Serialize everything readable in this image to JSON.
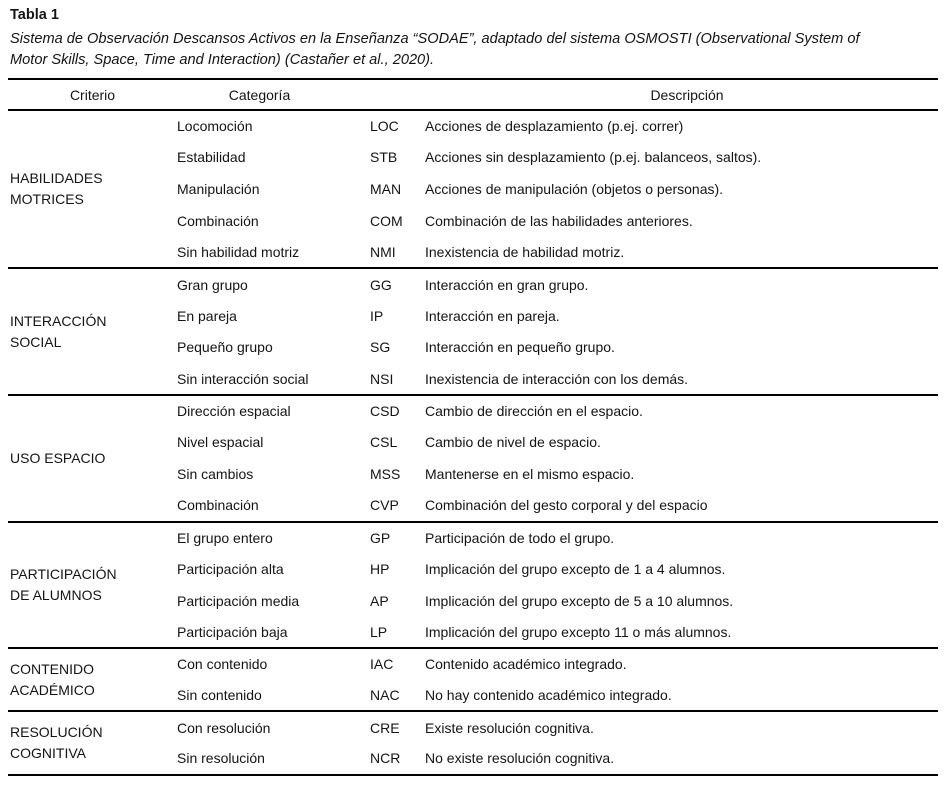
{
  "table": {
    "label": "Tabla 1",
    "caption_lines": [
      "Sistema de Observación Descansos Activos en la Enseñanza “SODAE”, adaptado del sistema OSMOSTI (Observational System of",
      "Motor Skills, Space, Time and Interaction) (Castañer et al., 2020)."
    ],
    "headers": {
      "criterio": "Criterio",
      "categoria": "Categoría",
      "descripcion": "Descripción"
    },
    "groups": [
      {
        "criterio": "HABILIDADES MOTRICES",
        "criterio_lines": [
          "HABILIDADES",
          "MOTRICES"
        ],
        "rows": [
          {
            "categoria": "Locomoción",
            "codigo": "LOC",
            "descripcion": "Acciones de desplazamiento (p.ej. correr)"
          },
          {
            "categoria": "Estabilidad",
            "codigo": "STB",
            "descripcion": "Acciones sin desplazamiento (p.ej. balanceos, saltos)."
          },
          {
            "categoria": "Manipulación",
            "codigo": "MAN",
            "descripcion": "Acciones de manipulación (objetos o personas)."
          },
          {
            "categoria": "Combinación",
            "codigo": "COM",
            "descripcion": "Combinación de las habilidades anteriores."
          },
          {
            "categoria": "Sin habilidad motriz",
            "codigo": "NMI",
            "descripcion": "Inexistencia de habilidad motriz."
          }
        ]
      },
      {
        "criterio": "INTERACCIÓN SOCIAL",
        "criterio_lines": [
          "INTERACCIÓN",
          "SOCIAL"
        ],
        "rows": [
          {
            "categoria": "Gran grupo",
            "codigo": "GG",
            "descripcion": "Interacción en gran grupo."
          },
          {
            "categoria": "En pareja",
            "codigo": "IP",
            "descripcion": "Interacción en pareja."
          },
          {
            "categoria": "Pequeño grupo",
            "codigo": "SG",
            "descripcion": "Interacción en pequeño grupo."
          },
          {
            "categoria": "Sin interacción social",
            "codigo": "NSI",
            "descripcion": "Inexistencia de interacción con los demás."
          }
        ]
      },
      {
        "criterio": "USO ESPACIO",
        "criterio_lines": [
          "USO ESPACIO"
        ],
        "rows": [
          {
            "categoria": "Dirección espacial",
            "codigo": "CSD",
            "descripcion": "Cambio de dirección en el espacio."
          },
          {
            "categoria": "Nivel espacial",
            "codigo": "CSL",
            "descripcion": "Cambio de nivel de espacio."
          },
          {
            "categoria": "Sin cambios",
            "codigo": "MSS",
            "descripcion": "Mantenerse en el mismo espacio."
          },
          {
            "categoria": "Combinación",
            "codigo": "CVP",
            "descripcion": "Combinación del gesto corporal y del espacio"
          }
        ]
      },
      {
        "criterio": "PARTICIPACIÓN DE ALUMNOS",
        "criterio_lines": [
          "PARTICIPACIÓN",
          "DE ALUMNOS"
        ],
        "rows": [
          {
            "categoria": "El grupo entero",
            "codigo": "GP",
            "descripcion": "Participación de todo el grupo."
          },
          {
            "categoria": "Participación alta",
            "codigo": "HP",
            "descripcion": "Implicación del grupo excepto de 1 a 4 alumnos."
          },
          {
            "categoria": "Participación media",
            "codigo": "AP",
            "descripcion": "Implicación del grupo excepto de 5 a 10 alumnos."
          },
          {
            "categoria": "Participación baja",
            "codigo": "LP",
            "descripcion": "Implicación del grupo excepto 11 o más alumnos."
          }
        ]
      },
      {
        "criterio": "CONTENIDO ACADÉMICO",
        "criterio_lines": [
          "CONTENIDO",
          "ACADÉMICO"
        ],
        "rows": [
          {
            "categoria": "Con contenido",
            "codigo": "IAC",
            "descripcion": "Contenido académico integrado."
          },
          {
            "categoria": "Sin contenido",
            "codigo": "NAC",
            "descripcion": "No hay contenido académico integrado."
          }
        ]
      },
      {
        "criterio": "RESOLUCIÓN COGNITIVA",
        "criterio_lines": [
          "RESOLUCIÓN",
          "COGNITIVA"
        ],
        "rows": [
          {
            "categoria": "Con resolución",
            "codigo": "CRE",
            "descripcion": "Existe resolución cognitiva."
          },
          {
            "categoria": "Sin resolución",
            "codigo": "NCR",
            "descripcion": "No existe resolución cognitiva."
          }
        ]
      }
    ]
  }
}
